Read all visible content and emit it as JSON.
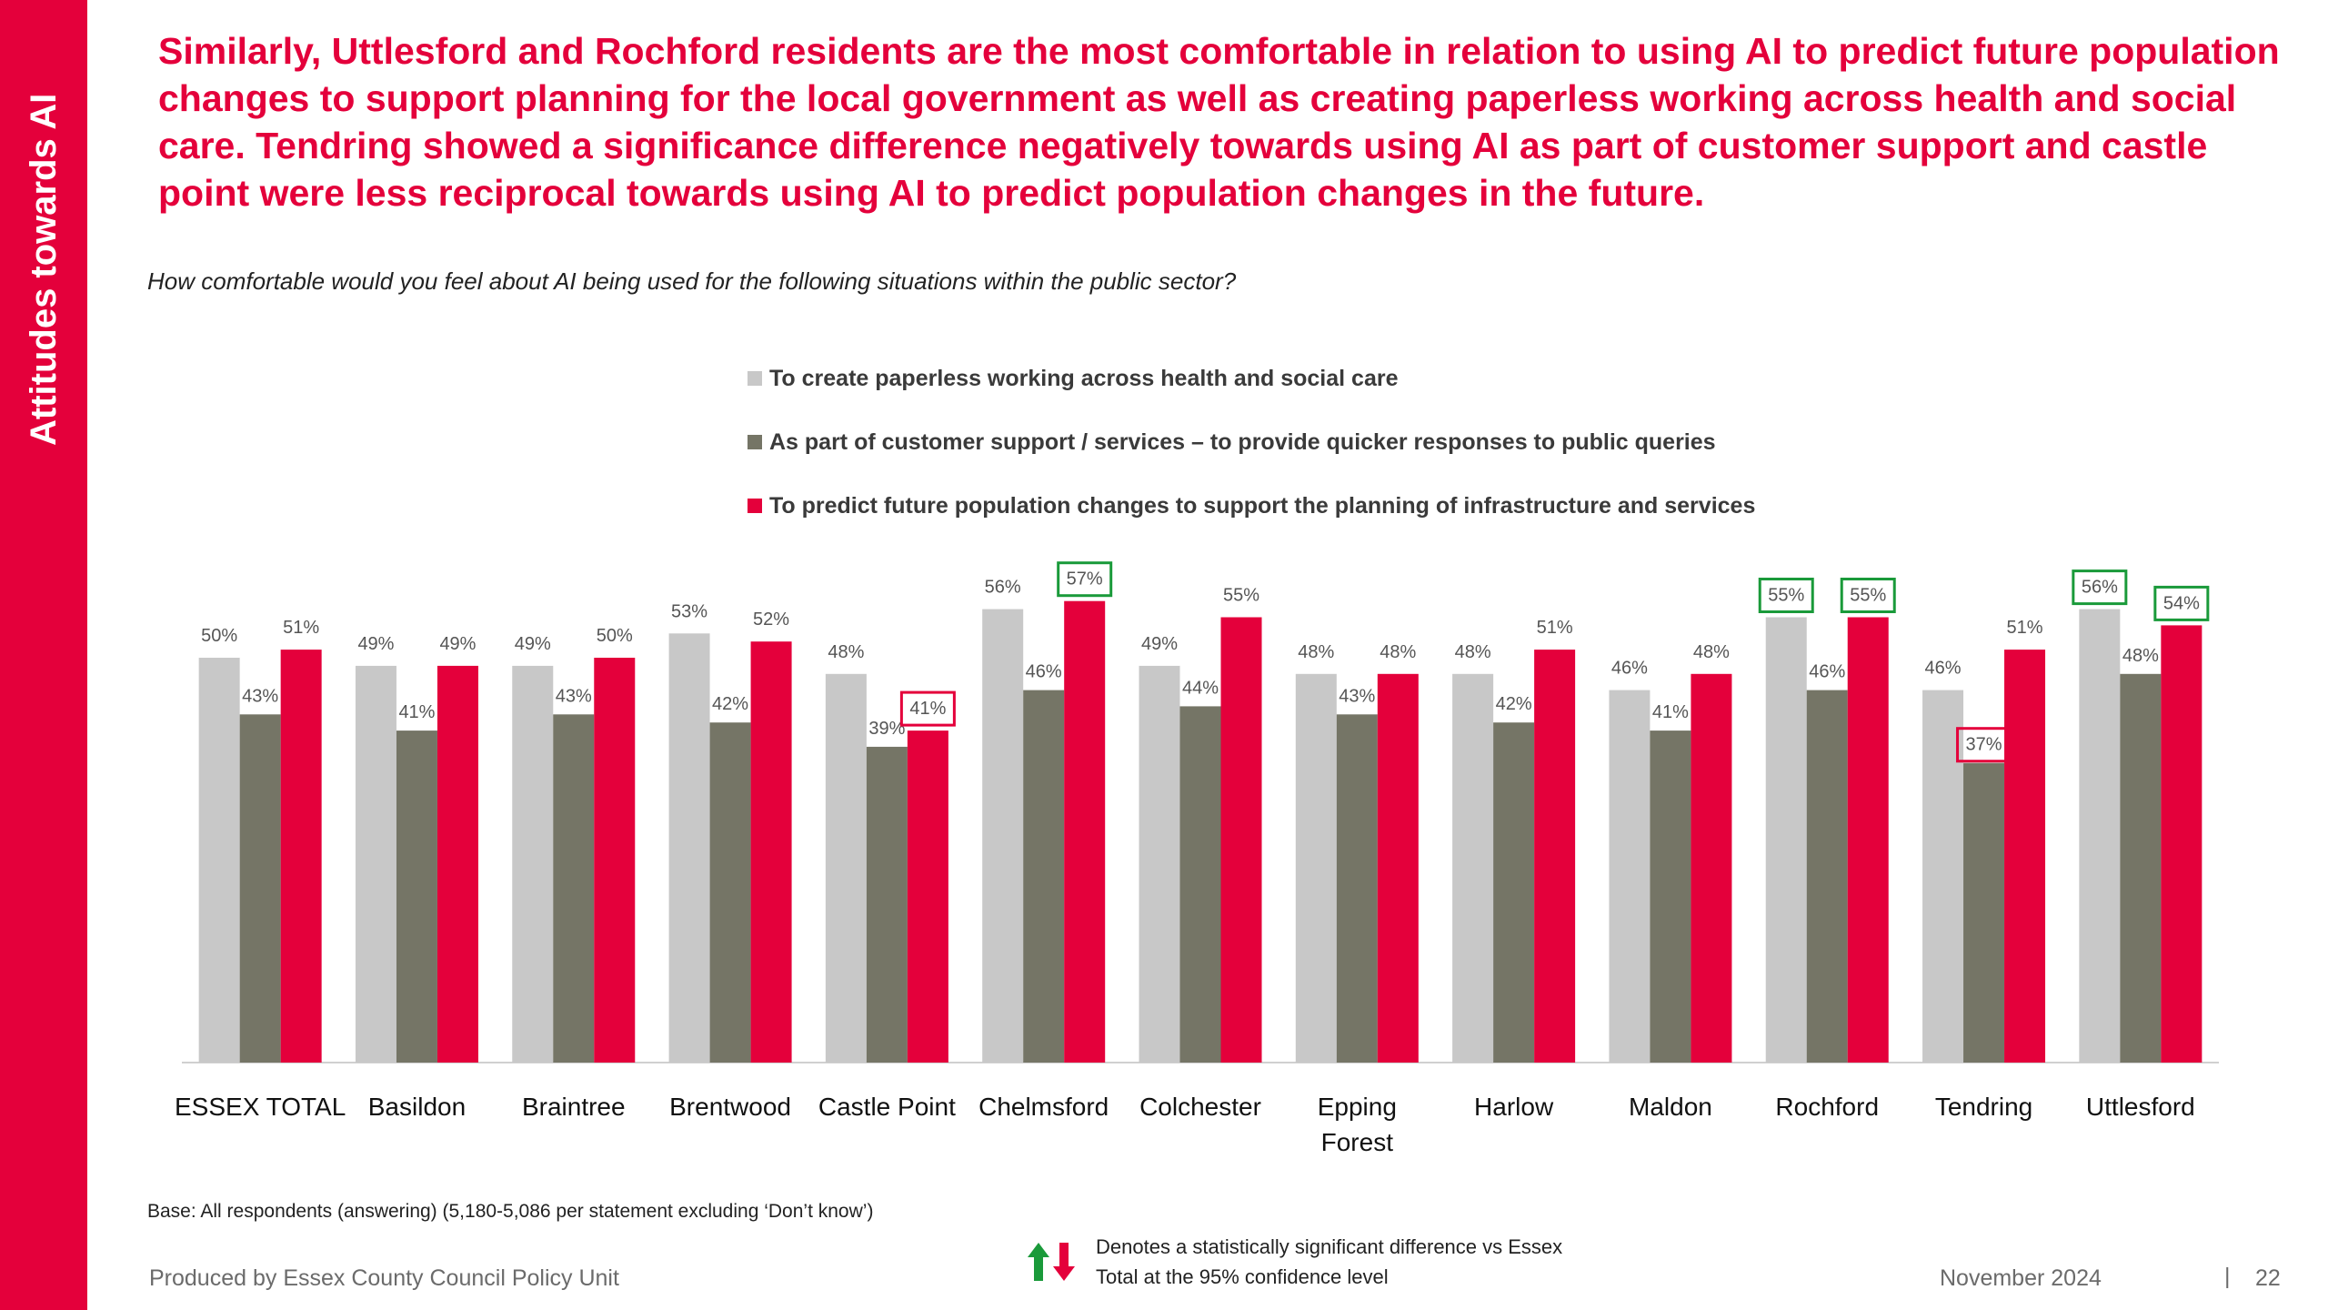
{
  "sidebar": {
    "title": "Attitudes towards AI"
  },
  "headline": "Similarly, Uttlesford and Rochford residents are the most comfortable in relation to using AI to predict future population changes to support planning for the local government as well as creating paperless working across health and social care. Tendring showed a significance difference negatively towards using AI as part of customer support and castle point were less reciprocal towards using AI to predict population changes in the future.",
  "question": "How comfortable would you feel about AI being used for the following situations within the public sector?",
  "colors": {
    "brand": "#e4003b",
    "series1": "#c8c8c8",
    "series2": "#757566",
    "series3": "#e4003b",
    "sig_positive": "#1a9a3a",
    "sig_negative": "#e4003b"
  },
  "chart_data": {
    "type": "bar",
    "categories": [
      "ESSEX TOTAL",
      "Basildon",
      "Braintree",
      "Brentwood",
      "Castle Point",
      "Chelmsford",
      "Colchester",
      "Epping Forest",
      "Harlow",
      "Maldon",
      "Rochford",
      "Tendring",
      "Uttlesford"
    ],
    "category_lines": [
      [
        "ESSEX TOTAL"
      ],
      [
        "Basildon"
      ],
      [
        "Braintree"
      ],
      [
        "Brentwood"
      ],
      [
        "Castle Point"
      ],
      [
        "Chelmsford"
      ],
      [
        "Colchester"
      ],
      [
        "Epping",
        "Forest"
      ],
      [
        "Harlow"
      ],
      [
        "Maldon"
      ],
      [
        "Rochford"
      ],
      [
        "Tendring"
      ],
      [
        "Uttlesford"
      ]
    ],
    "series": [
      {
        "name": "To create paperless working across health and social care",
        "color": "#c8c8c8",
        "values": [
          50,
          49,
          49,
          53,
          48,
          56,
          49,
          48,
          48,
          46,
          55,
          46,
          56
        ],
        "labels": [
          "50%",
          "49%",
          "49%",
          "53%",
          "48%",
          "56%",
          "49%",
          "48%",
          "48%",
          "46%",
          "55%",
          "46%",
          "56%"
        ],
        "significance": [
          null,
          null,
          null,
          null,
          null,
          null,
          null,
          null,
          null,
          null,
          "higher",
          null,
          "higher"
        ]
      },
      {
        "name": "As part of customer support / services – to provide quicker responses to public queries",
        "color": "#757566",
        "values": [
          43,
          41,
          43,
          42,
          39,
          46,
          44,
          43,
          42,
          41,
          46,
          37,
          48
        ],
        "labels": [
          "43%",
          "41%",
          "43%",
          "42%",
          "39%",
          "46%",
          "44%",
          "43%",
          "42%",
          "41%",
          "46%",
          "37%",
          "48%"
        ],
        "significance": [
          null,
          null,
          null,
          null,
          null,
          null,
          null,
          null,
          null,
          null,
          null,
          "lower",
          null
        ]
      },
      {
        "name": "To predict future population changes to support the planning of infrastructure and services",
        "color": "#e4003b",
        "values": [
          51,
          49,
          50,
          52,
          41,
          57,
          55,
          48,
          51,
          48,
          55,
          51,
          54
        ],
        "labels": [
          "51%",
          "49%",
          "50%",
          "52%",
          "41%",
          "57%",
          "55%",
          "48%",
          "51%",
          "48%",
          "55%",
          "51%",
          "54%"
        ],
        "significance": [
          null,
          null,
          null,
          null,
          "lower",
          "higher",
          null,
          null,
          null,
          null,
          "higher",
          null,
          "higher"
        ]
      }
    ],
    "ylim": [
      0,
      100
    ],
    "grid": false,
    "legend_position": "top"
  },
  "footer": {
    "base": "Base: All respondents (answering) (5,180-5,086 per statement excluding ‘Don’t know’)",
    "produced": "Produced by Essex County Council Policy Unit",
    "note": "Denotes a statistically significant difference vs Essex Total at the 95% confidence level",
    "date": "November 2024",
    "separator": "|",
    "page": "22"
  }
}
